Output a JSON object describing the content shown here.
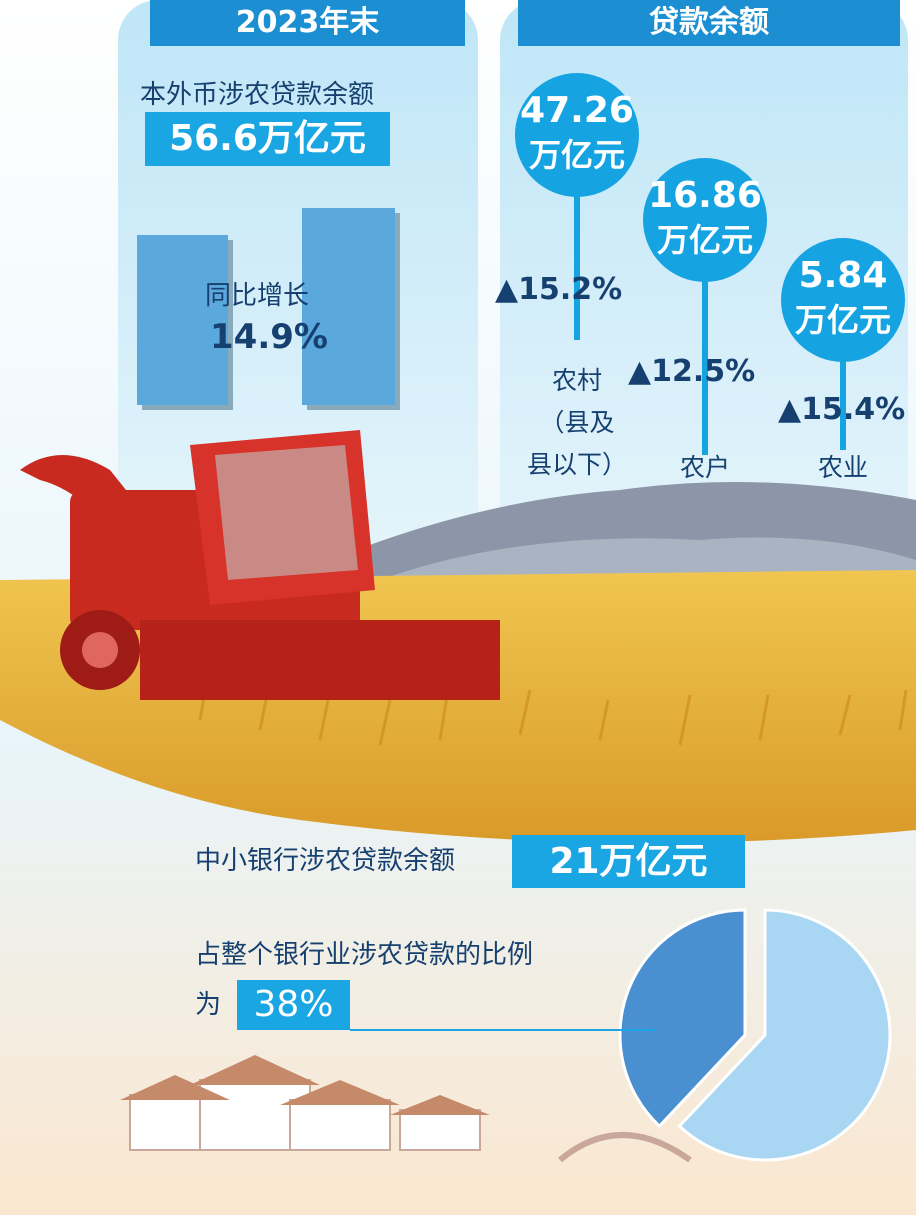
{
  "left": {
    "header": "2023年末",
    "title": "本外币涉农贷款余额",
    "total": "56.6万亿元",
    "growth_label": "同比增长",
    "growth": "14.9%"
  },
  "right": {
    "header": "贷款余额",
    "items": [
      {
        "amount": "47.26",
        "unit": "万亿元",
        "growth": "▲15.2%",
        "label": [
          "农村",
          "（县及",
          "县以下）"
        ]
      },
      {
        "amount": "16.86",
        "unit": "万亿元",
        "growth": "▲12.5%",
        "label": [
          "农户"
        ]
      },
      {
        "amount": "5.84",
        "unit": "万亿元",
        "growth": "▲15.4%",
        "label": [
          "农业"
        ]
      }
    ]
  },
  "bottom": {
    "title": "中小银行涉农贷款余额",
    "amount": "21万亿元",
    "share_text": "占整个银行业涉农贷款的比例",
    "share_prefix": "为",
    "share": {
      "value": 38,
      "label": "38%"
    }
  }
}
